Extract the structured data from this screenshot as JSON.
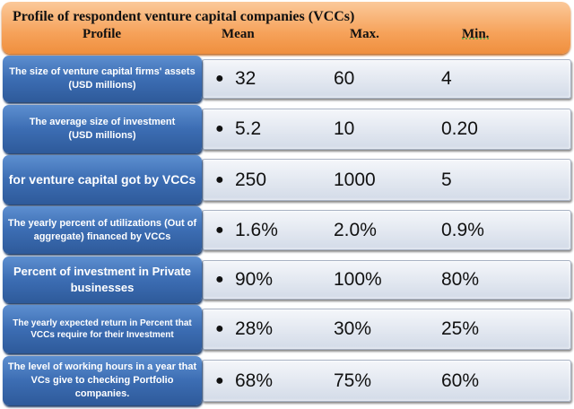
{
  "title": "Profile of respondent venture capital companies (VCCs)",
  "columns": [
    "Profile",
    "Mean",
    "Max.",
    "Min."
  ],
  "rows": [
    {
      "label": [
        "The size of venture capital firms' assets",
        "(USD millions)"
      ],
      "mean": "32",
      "max": "60",
      "min": "4"
    },
    {
      "label": [
        "The average size of investment",
        "(USD millions)"
      ],
      "mean": "5.2",
      "max": "10",
      "min": "0.20"
    },
    {
      "label": [
        "for venture capital got by VCCs",
        ""
      ],
      "mean": "250",
      "max": "1000",
      "min": "5"
    },
    {
      "label": [
        "The yearly percent of utilizations (Out of aggregate) financed by VCCs",
        ""
      ],
      "mean": "1.6%",
      "max": "2.0%",
      "min": "0.9%"
    },
    {
      "label": [
        "Percent of investment in Private businesses",
        ""
      ],
      "mean": "90%",
      "max": "100%",
      "min": "80%"
    },
    {
      "label": [
        "The yearly expected return in Percent that VCCs require for their Investment",
        ""
      ],
      "mean": "28%",
      "max": "30%",
      "min": "25%"
    },
    {
      "label": [
        "The level of working hours in a year that VCs give to checking Portfolio companies.",
        ""
      ],
      "mean": "68%",
      "max": "75%",
      "min": "60%"
    }
  ]
}
